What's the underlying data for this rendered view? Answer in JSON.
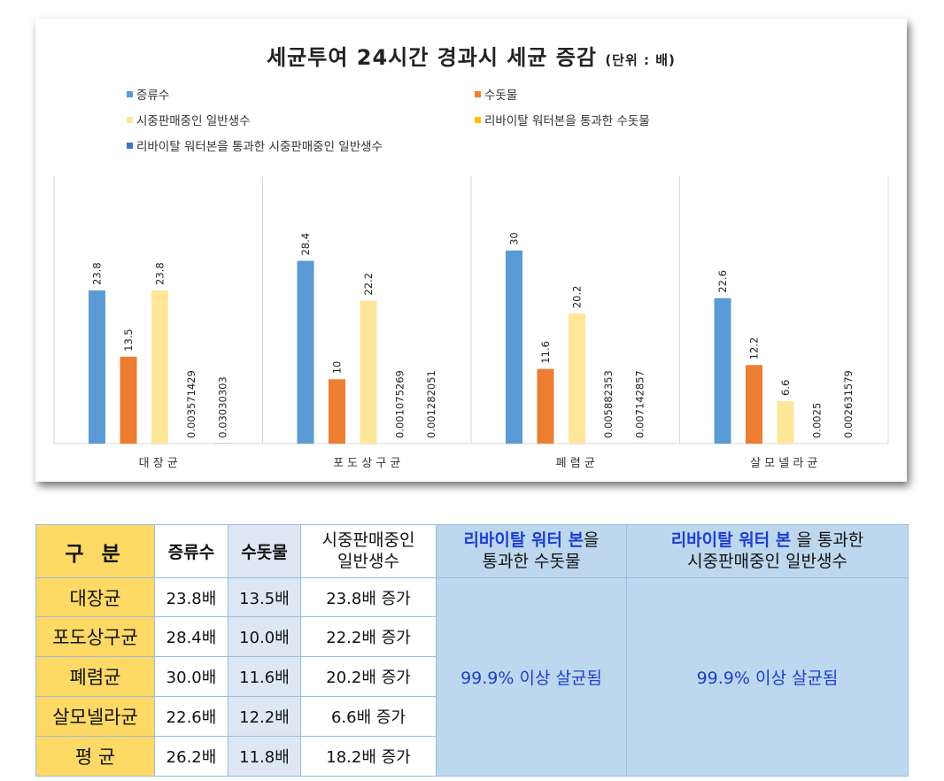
{
  "chart_data": {
    "type": "bar",
    "title": "세균투여 24시간 경과시 세균 증감",
    "title_unit": "(단위 : 배)",
    "categories": [
      "대장균",
      "포도상구균",
      "폐렴균",
      "살모넬라균"
    ],
    "category_labels_spaced": [
      "대 장 균",
      "포 도 상 구 균",
      "폐 렴 균",
      "살 모 넬 라 균"
    ],
    "ylim": [
      0,
      32
    ],
    "grid": false,
    "legend_position": "top",
    "series": [
      {
        "name": "증류수",
        "color": "#5b9bd5",
        "values": [
          23.8,
          28.4,
          30,
          22.6
        ],
        "labels": [
          "23.8",
          "28.4",
          "30",
          "22.6"
        ]
      },
      {
        "name": "수돗물",
        "color": "#ed7d31",
        "values": [
          13.5,
          10,
          11.6,
          12.2
        ],
        "labels": [
          "13.5",
          "10",
          "11.6",
          "12.2"
        ]
      },
      {
        "name": "시중판매중인 일반생수",
        "color": "#ffe699",
        "values": [
          23.8,
          22.2,
          20.2,
          6.6
        ],
        "labels": [
          "23.8",
          "22.2",
          "20.2",
          "6.6"
        ]
      },
      {
        "name": "리바이탈 워터본을 통과한 수돗물",
        "color": "#ffc000",
        "values": [
          0.003571429,
          0.001075269,
          0.005882353,
          0.0025
        ],
        "labels": [
          "0.003571429",
          "0.001075269",
          "0.005882353",
          "0.0025"
        ]
      },
      {
        "name": "리바이탈 워터본을 통과한 시중판매중인 일반생수",
        "color": "#4472c4",
        "values": [
          0.03030303,
          0.001282051,
          0.007142857,
          0.002631579
        ],
        "labels": [
          "0.03030303",
          "0.001282051",
          "0.007142857",
          "0.002631579"
        ]
      }
    ]
  },
  "table": {
    "header_gubun": "구 분",
    "header_col1": "증류수",
    "header_col2": "수돗물",
    "header_col3_line1": "시중판매중인",
    "header_col3_line2": "일반생수",
    "header_col4_brand": "리바이탈 워터 본",
    "header_col4_rest": "을",
    "header_col4_line2": "통과한 수돗물",
    "header_col5_brand": "리바이탈 워터 본",
    "header_col5_rest": "을 통과한",
    "header_col5_line2": "시중판매중인 일반생수",
    "rows": [
      {
        "label": "대장균",
        "c1": "23.8배",
        "c2": "13.5배",
        "c3": "23.8배 증가"
      },
      {
        "label": "포도상구균",
        "c1": "28.4배",
        "c2": "10.0배",
        "c3": "22.2배 증가"
      },
      {
        "label": "폐렴균",
        "c1": "30.0배",
        "c2": "11.6배",
        "c3": "20.2배 증가"
      },
      {
        "label": "살모넬라균",
        "c1": "22.6배",
        "c2": "12.2배",
        "c3": "6.6배 증가"
      },
      {
        "label": "평 균",
        "c1": "26.2배",
        "c2": "11.8배",
        "c3": "18.2배 증가"
      }
    ],
    "merged_col4": "99.9% 이상 살균됨",
    "merged_col5": "99.9% 이상 살균됨"
  }
}
